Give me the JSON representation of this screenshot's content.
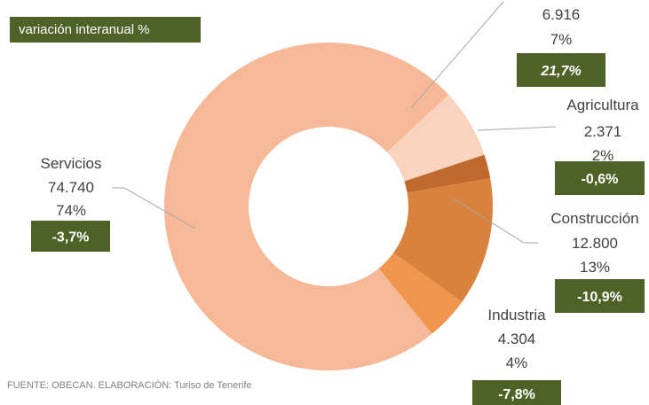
{
  "legend_label": "variación interanual %",
  "source": "FUENTE: OBECAN. ELABORACIÓN: Turiso de Tenerife",
  "colors": {
    "box": "#4e6228",
    "servicios": "#f6b896",
    "unlabeled": "#f9d3bd",
    "agricultura": "#c0692f",
    "construccion": "#d9823e",
    "industria": "#f0954d"
  },
  "chart_data": {
    "type": "pie",
    "donut": true,
    "slices": [
      {
        "name": "",
        "value": 6916,
        "pct": "7%",
        "change": "21,7%",
        "value_label": "6.916"
      },
      {
        "name": "Agricultura",
        "value": 2371,
        "pct": "2%",
        "change": "-0,6%",
        "value_label": "2.371"
      },
      {
        "name": "Construcción",
        "value": 12800,
        "pct": "13%",
        "change": "-10,9%",
        "value_label": "12.800"
      },
      {
        "name": "Industria",
        "value": 4304,
        "pct": "4%",
        "change": "-7,8%",
        "value_label": "4.304"
      },
      {
        "name": "Servicios",
        "value": 74740,
        "pct": "74%",
        "change": "-3,7%",
        "value_label": "74.740"
      }
    ]
  }
}
